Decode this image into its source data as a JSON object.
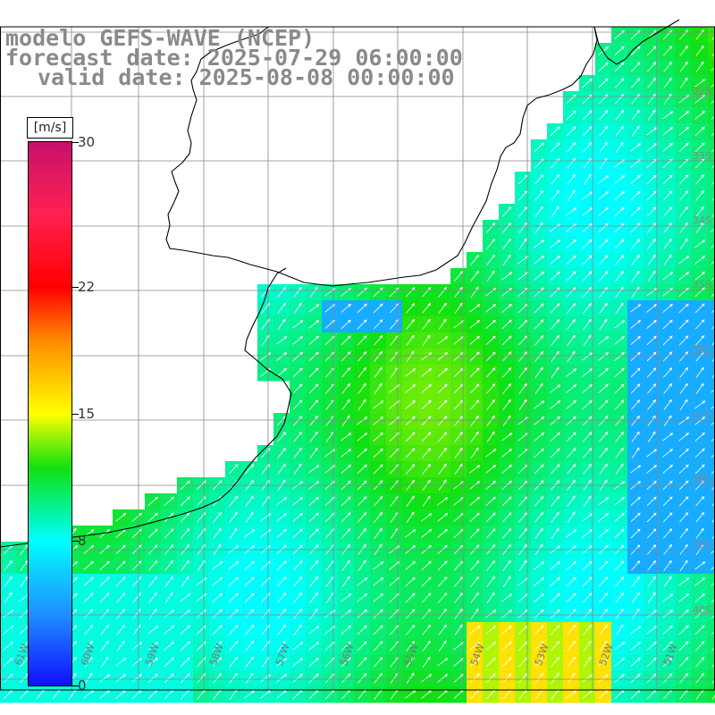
{
  "header": {
    "line1": "modelo GEFS-WAVE (NCEP)",
    "line2": "forecast date: 2025-07-29 06:00:00",
    "line3": "valid date: 2025-08-08 00:00:00"
  },
  "colorbar": {
    "unit": "[m/s]",
    "min": 0,
    "max": 30,
    "ticks": [
      30,
      22,
      15,
      8,
      0
    ],
    "stops": [
      {
        "v": 0,
        "c": "#1010ff"
      },
      {
        "v": 4,
        "c": "#1e90ff"
      },
      {
        "v": 8,
        "c": "#00ffff"
      },
      {
        "v": 12,
        "c": "#10e010"
      },
      {
        "v": 15,
        "c": "#ffff00"
      },
      {
        "v": 19,
        "c": "#ff8c00"
      },
      {
        "v": 22,
        "c": "#ff0000"
      },
      {
        "v": 26,
        "c": "#ff2050"
      },
      {
        "v": 30,
        "c": "#c8106e"
      }
    ]
  },
  "axes": {
    "lon_labels": [
      "61W",
      "60W",
      "59W",
      "58W",
      "57W",
      "56W",
      "55W",
      "54W",
      "53W",
      "52W",
      "51W"
    ],
    "lat_labels": [
      "32S",
      "33S",
      "34S",
      "35S",
      "36S",
      "37S",
      "38S",
      "39S",
      "40S"
    ]
  },
  "field": {
    "variable": "wind speed",
    "description_units": "m/s",
    "land_color": "#ffffff",
    "coast_color": "#000000",
    "grid_color": "#888888",
    "arrow_color": "#ffffff"
  }
}
